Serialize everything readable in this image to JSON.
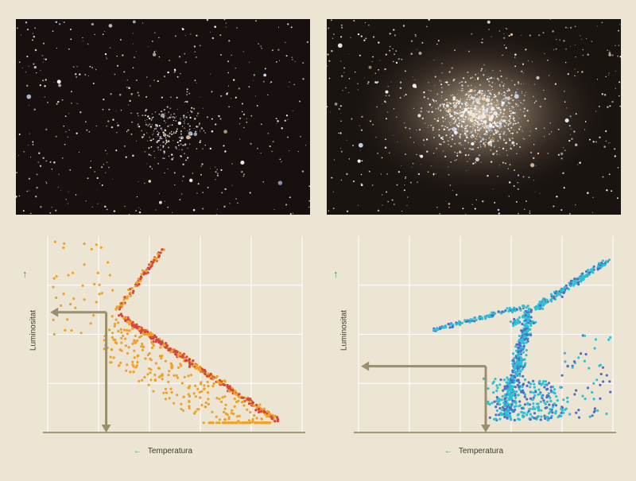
{
  "chart_data": [
    {
      "type": "scatter",
      "title": "",
      "xlabel": "Temperatura",
      "ylabel": "Luminositat",
      "xlim": [
        0,
        5
      ],
      "ylim": [
        0,
        4
      ],
      "grid": true,
      "colors": [
        "#d6453e",
        "#f0a128"
      ],
      "annotation_arrow": {
        "from_y": 2.45,
        "corner_x": 1.15,
        "to_x": 0.05,
        "to_y": 0.0
      }
    },
    {
      "type": "scatter",
      "title": "",
      "xlabel": "Temperatura",
      "ylabel": "Luminositat",
      "xlim": [
        0,
        5
      ],
      "ylim": [
        0,
        4
      ],
      "grid": true,
      "colors": [
        "#2cc1d6",
        "#4d6fc4"
      ],
      "annotation_arrow": {
        "from_y": 1.35,
        "corner_x": 2.5,
        "to_x": 0.05,
        "to_y": 0.0
      }
    }
  ],
  "photos": {
    "left_icon": "open-cluster-photo",
    "right_icon": "globular-cluster-photo"
  }
}
